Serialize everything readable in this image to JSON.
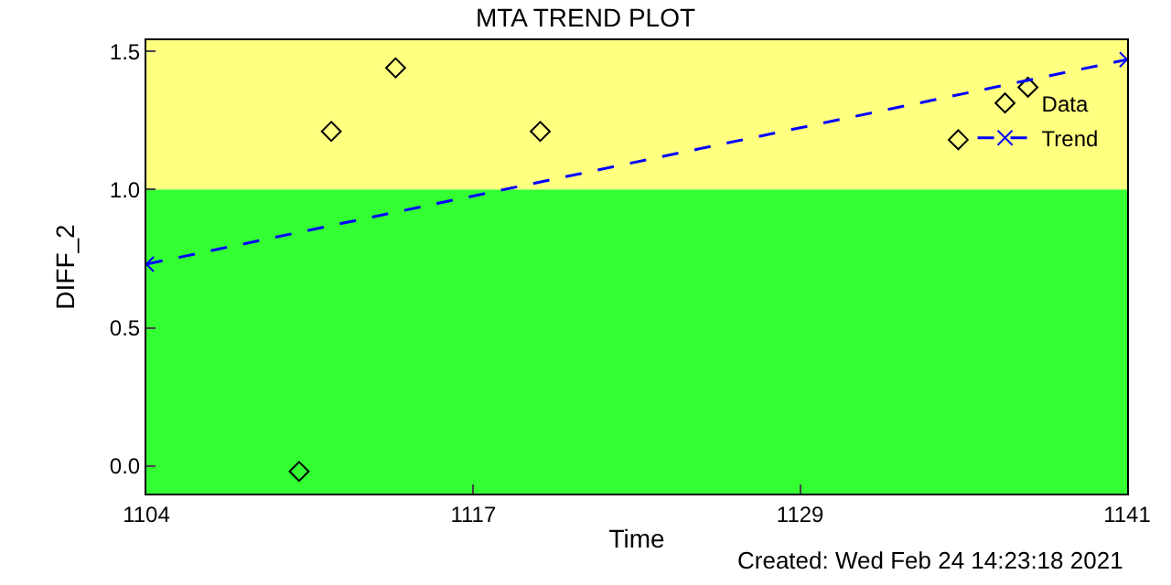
{
  "chart_data": {
    "type": "scatter",
    "title": "MTA TREND PLOT",
    "xlabel": "Time",
    "ylabel": "DIFF_2",
    "xlim": [
      1104.4,
      1141
    ],
    "xticks": [
      {
        "value": 1104.4,
        "label": "1104"
      },
      {
        "value": 1116.6,
        "label": "1117"
      },
      {
        "value": 1128.8,
        "label": "1129"
      },
      {
        "value": 1141,
        "label": "1141"
      }
    ],
    "ylim": [
      -0.1,
      1.54
    ],
    "yticks": [
      {
        "value": 0,
        "label": "0.0"
      },
      {
        "value": 0.5,
        "label": "0.5"
      },
      {
        "value": 1.0,
        "label": "1.0"
      },
      {
        "value": 1.5,
        "label": "1.5"
      }
    ],
    "bands": [
      {
        "axis": "y",
        "from": -0.1,
        "to": 1.0,
        "color": "#33ff33"
      },
      {
        "axis": "y",
        "from": 1.0,
        "to": 1.54,
        "color": "#ffff80"
      }
    ],
    "series": [
      {
        "name": "Data",
        "color": "#000000",
        "marker": "diamond",
        "x": [
          1110.1,
          1111.3,
          1113.7,
          1119.1,
          1134.7,
          1137.3
        ],
        "values": [
          -0.02,
          1.21,
          1.44,
          1.21,
          1.18,
          1.37
        ]
      },
      {
        "name": "Trend",
        "type": "line",
        "color": "#0000ff",
        "marker": "cross",
        "line_style": "dashed",
        "x": [
          1104.4,
          1141
        ],
        "values": [
          0.73,
          1.47
        ]
      }
    ],
    "legend": "top right",
    "grid": false,
    "annotations": [
      "Created: Wed Feb 24 14:23:18 2021"
    ]
  }
}
